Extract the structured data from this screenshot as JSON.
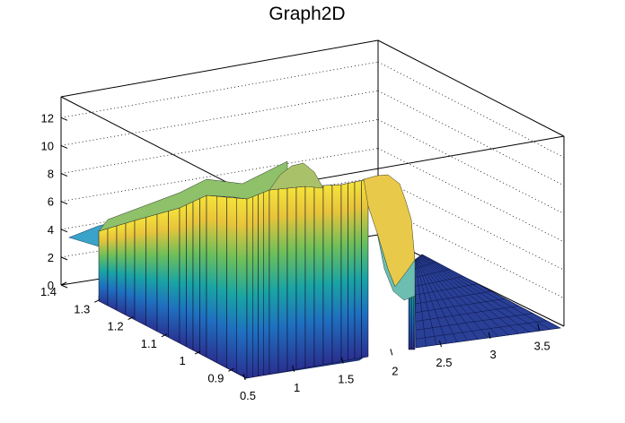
{
  "chart_data": {
    "type": "surface",
    "title": "Graph2D",
    "x_axis": {
      "label": "",
      "range": [
        0.5,
        3.75
      ],
      "ticks": [
        "0.5",
        "1",
        "1.5",
        "2",
        "2.5",
        "3",
        "3.5"
      ]
    },
    "y_axis": {
      "label": "",
      "range": [
        0.85,
        1.4
      ],
      "ticks": [
        "0.9",
        "1",
        "1.1",
        "1.2",
        "1.3",
        "1.4"
      ]
    },
    "z_axis": {
      "label": "",
      "range": [
        0,
        13.5
      ],
      "ticks": [
        "0",
        "2",
        "4",
        "6",
        "8",
        "10",
        "12"
      ]
    },
    "grid": true,
    "colormap": "viridis-like (blue → teal → green → yellow)",
    "surface_front_edge_profile": {
      "x": [
        0.65,
        0.8,
        0.95,
        1.1,
        1.25,
        1.4,
        1.55,
        1.7,
        1.85,
        1.95,
        2.05,
        2.2,
        2.35,
        2.45,
        2.6,
        2.75
      ],
      "z": [
        0,
        0,
        0,
        0,
        0,
        0,
        0,
        0,
        0,
        0,
        0,
        0,
        0,
        0,
        0,
        0
      ]
    },
    "surface_ridge_profile": {
      "x": [
        0.5,
        0.7,
        0.9,
        1.1,
        1.3,
        1.5,
        1.7,
        1.9,
        2.0,
        2.1,
        2.2,
        2.3,
        2.4
      ],
      "z": [
        3.5,
        4.0,
        5.2,
        6.0,
        6.5,
        6.8,
        7.0,
        7.3,
        7.6,
        7.4,
        6.5,
        4.0,
        2.5
      ]
    },
    "peak": {
      "x": 1.95,
      "y": 1.38,
      "z": 9.2
    }
  }
}
